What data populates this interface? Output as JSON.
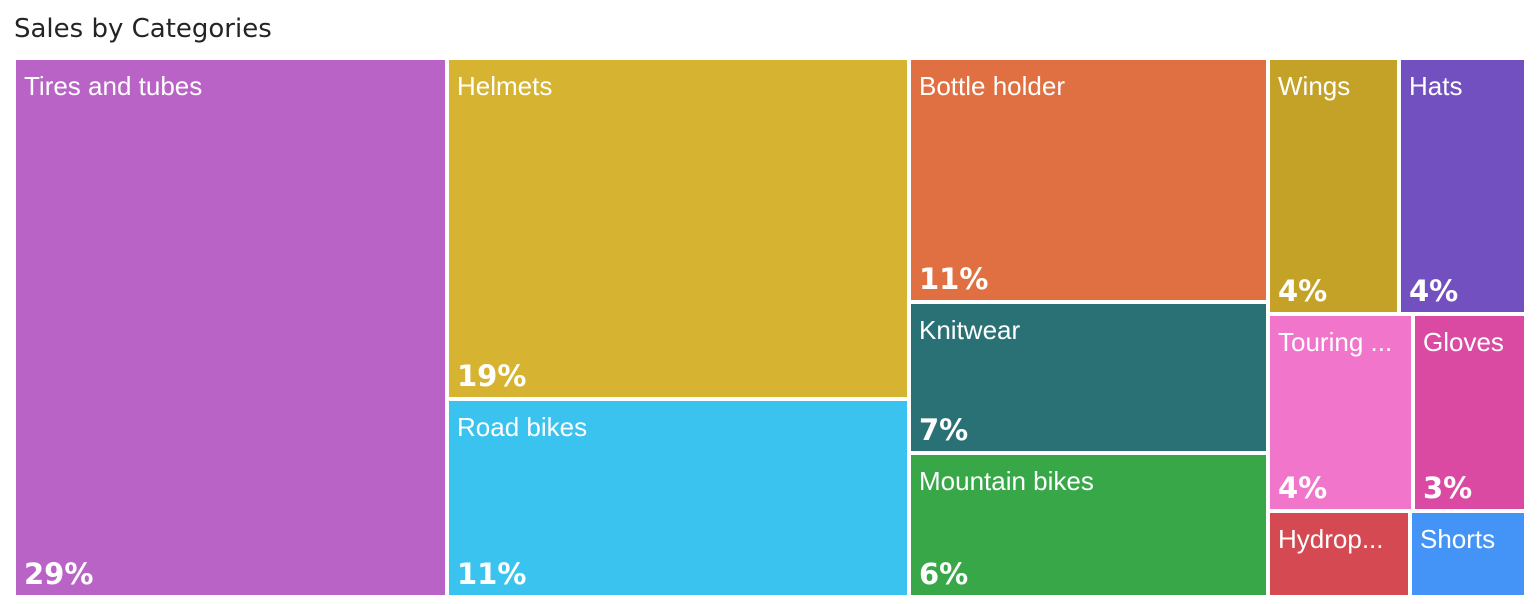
{
  "chart_data": {
    "type": "treemap",
    "title": "Sales by Categories",
    "items": [
      {
        "label": "Tires and tubes",
        "value": 29,
        "value_label": "29%",
        "color": "#B963C7"
      },
      {
        "label": "Helmets",
        "value": 19,
        "value_label": "19%",
        "color": "#D6B330"
      },
      {
        "label": "Road bikes",
        "value": 11,
        "value_label": "11%",
        "color": "#3AC3EE"
      },
      {
        "label": "Bottle holder",
        "value": 11,
        "value_label": "11%",
        "color": "#E07041"
      },
      {
        "label": "Knitwear",
        "value": 7,
        "value_label": "7%",
        "color": "#297175"
      },
      {
        "label": "Mountain bikes",
        "value": 6,
        "value_label": "6%",
        "color": "#37A747"
      },
      {
        "label": "Wings",
        "value": 4,
        "value_label": "4%",
        "color": "#C4A228"
      },
      {
        "label": "Hats",
        "value": 4,
        "value_label": "4%",
        "color": "#7250BF"
      },
      {
        "label": "Touring ...",
        "value": 4,
        "value_label": "4%",
        "color": "#F075CB"
      },
      {
        "label": "Gloves",
        "value": 3,
        "value_label": "3%",
        "color": "#DA4AA2"
      },
      {
        "label": "Hydrop...",
        "value": 2,
        "value_label": "",
        "color": "#D44952"
      },
      {
        "label": "Shorts",
        "value": 2,
        "value_label": "",
        "color": "#4493F6"
      }
    ]
  }
}
